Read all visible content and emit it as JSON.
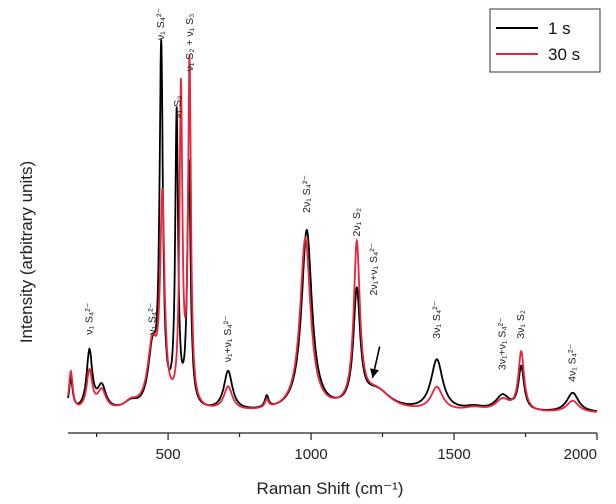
{
  "chart_data": {
    "type": "line",
    "title": "",
    "xlabel": "Raman Shift (cm⁻¹)",
    "ylabel": "Intensity (arbitrary units)",
    "xlim": [
      150,
      2000
    ],
    "ylim": [
      0,
      1.0
    ],
    "x_ticks": [
      500,
      1000,
      1500,
      2000
    ],
    "x_tick_labels": [
      "500",
      "1000",
      "1500",
      "2000"
    ],
    "y_tick_labels_shown": false,
    "grid": false,
    "legend_position": "top-right",
    "baseline": 0.05,
    "series": [
      {
        "name": "1 s",
        "color": "#000000",
        "peaks": [
          {
            "x": 160,
            "h": 0.08,
            "w": 8
          },
          {
            "x": 225,
            "h": 0.15,
            "w": 12
          },
          {
            "x": 268,
            "h": 0.06,
            "w": 18
          },
          {
            "x": 370,
            "h": 0.02,
            "w": 30
          },
          {
            "x": 445,
            "h": 0.14,
            "w": 18
          },
          {
            "x": 476,
            "h": 0.9,
            "w": 7
          },
          {
            "x": 530,
            "h": 0.74,
            "w": 6
          },
          {
            "x": 573,
            "h": 0.62,
            "w": 7
          },
          {
            "x": 710,
            "h": 0.1,
            "w": 18
          },
          {
            "x": 845,
            "h": 0.03,
            "w": 8
          },
          {
            "x": 985,
            "h": 0.46,
            "w": 22
          },
          {
            "x": 1160,
            "h": 0.29,
            "w": 14
          },
          {
            "x": 1230,
            "h": 0.05,
            "w": 60
          },
          {
            "x": 1440,
            "h": 0.13,
            "w": 25
          },
          {
            "x": 1570,
            "h": 0.01,
            "w": 40
          },
          {
            "x": 1670,
            "h": 0.04,
            "w": 30
          },
          {
            "x": 1735,
            "h": 0.11,
            "w": 12
          },
          {
            "x": 1915,
            "h": 0.05,
            "w": 25
          }
        ]
      },
      {
        "name": "30 s",
        "color": "#e8253c",
        "peaks": [
          {
            "x": 160,
            "h": 0.1,
            "w": 8
          },
          {
            "x": 225,
            "h": 0.1,
            "w": 12
          },
          {
            "x": 268,
            "h": 0.05,
            "w": 18
          },
          {
            "x": 370,
            "h": 0.02,
            "w": 30
          },
          {
            "x": 445,
            "h": 0.16,
            "w": 20
          },
          {
            "x": 480,
            "h": 0.52,
            "w": 9
          },
          {
            "x": 545,
            "h": 0.8,
            "w": 6
          },
          {
            "x": 575,
            "h": 0.87,
            "w": 6
          },
          {
            "x": 710,
            "h": 0.06,
            "w": 18
          },
          {
            "x": 845,
            "h": 0.02,
            "w": 8
          },
          {
            "x": 980,
            "h": 0.44,
            "w": 22
          },
          {
            "x": 1160,
            "h": 0.41,
            "w": 13
          },
          {
            "x": 1230,
            "h": 0.05,
            "w": 60
          },
          {
            "x": 1440,
            "h": 0.06,
            "w": 25
          },
          {
            "x": 1570,
            "h": 0.01,
            "w": 40
          },
          {
            "x": 1670,
            "h": 0.03,
            "w": 30
          },
          {
            "x": 1735,
            "h": 0.15,
            "w": 12
          },
          {
            "x": 1915,
            "h": 0.03,
            "w": 25
          }
        ]
      }
    ],
    "annotations": [
      {
        "text": "ν₁ S₄²⁻",
        "x": 225,
        "y": 0.25
      },
      {
        "text": "ν₁ S₄²⁻",
        "x": 445,
        "y": 0.25
      },
      {
        "text": "ν₁ S₄²⁻",
        "x": 476,
        "y": 1.0
      },
      {
        "text": "ν₁ S₃",
        "x": 535,
        "y": 0.8
      },
      {
        "text": "ν₁ S₂ + ν₁ S₃",
        "x": 576,
        "y": 0.92
      },
      {
        "text": "ν₁+ν₁ S₄²⁻",
        "x": 710,
        "y": 0.18
      },
      {
        "text": "2ν₁ S₄²⁻",
        "x": 985,
        "y": 0.56
      },
      {
        "text": "2ν₁ S₂",
        "x": 1160,
        "y": 0.5
      },
      {
        "text": "2ν₁+ν₁ S₄²⁻",
        "x": 1220,
        "y": 0.35
      },
      {
        "text": "3ν₁ S₄²⁻",
        "x": 1440,
        "y": 0.24
      },
      {
        "text": "3ν₁+ν₁ S₄²⁻",
        "x": 1670,
        "y": 0.16
      },
      {
        "text": "3ν₁ S₂",
        "x": 1735,
        "y": 0.24
      },
      {
        "text": "4ν₁ S₄²⁻",
        "x": 1915,
        "y": 0.13
      }
    ],
    "arrow": {
      "from": [
        1240,
        0.22
      ],
      "to": [
        1215,
        0.14
      ]
    }
  }
}
